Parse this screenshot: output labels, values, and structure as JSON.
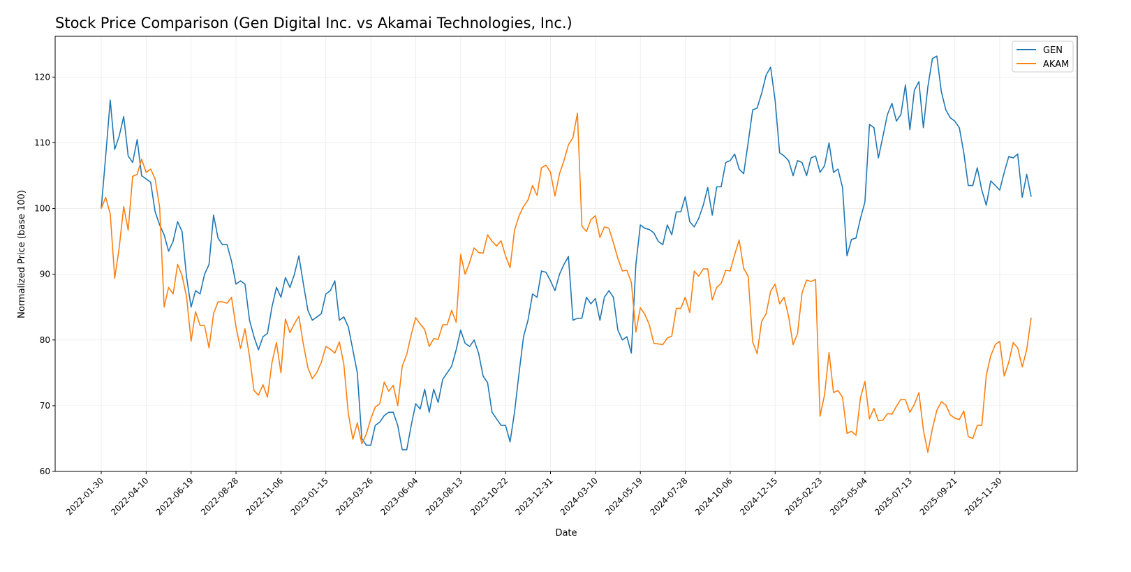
{
  "chart_data": {
    "type": "line",
    "title": "Stock Price Comparison (Gen Digital Inc. vs Akamai Technologies, Inc.)",
    "xlabel": "Date",
    "ylabel": "Normalized Price (base 100)",
    "x_start": "2022-01-30",
    "x_step_days": 7,
    "xticks": [
      "2022-01-30",
      "2022-04-10",
      "2022-06-19",
      "2022-08-28",
      "2022-11-06",
      "2023-01-15",
      "2023-03-26",
      "2023-06-04",
      "2023-08-13",
      "2023-10-22",
      "2023-12-31",
      "2024-03-10",
      "2024-05-19",
      "2024-07-28",
      "2024-10-06",
      "2024-12-15",
      "2025-02-23",
      "2025-05-04",
      "2025-07-13",
      "2025-09-21",
      "2025-11-30"
    ],
    "yticks": [
      "60",
      "70",
      "80",
      "90",
      "100",
      "110",
      "120"
    ],
    "ylim": [
      60,
      126.2
    ],
    "grid": true,
    "legend_position": "top-right",
    "series": [
      {
        "name": "GEN",
        "color": "#1f77b4",
        "values": [
          100,
          108,
          116.5,
          109,
          111,
          114,
          108,
          107,
          110.5,
          105,
          104.5,
          104,
          99.5,
          97.5,
          96,
          93.5,
          95,
          98,
          96.5,
          89.5,
          85,
          87.5,
          87,
          90,
          91.5,
          99,
          95.5,
          94.5,
          94.5,
          92,
          88.5,
          89,
          88.5,
          83,
          80.5,
          78.5,
          80.5,
          81,
          85,
          88,
          86.5,
          89.5,
          88,
          90,
          92.8,
          88.5,
          84.5,
          83,
          83.5,
          84,
          87,
          87.5,
          89,
          83,
          83.5,
          82,
          78.5,
          75,
          65,
          64,
          64,
          67,
          67.5,
          68.5,
          69,
          69,
          67,
          63.3,
          63.3,
          67,
          70.3,
          69.5,
          72.5,
          69,
          72.5,
          70.5,
          74,
          75,
          76,
          78.5,
          81.5,
          79.5,
          79,
          80,
          78,
          74.5,
          73.5,
          69,
          68,
          67,
          67,
          64.5,
          69,
          75,
          80.5,
          83,
          87,
          86.5,
          90.5,
          90.3,
          89,
          87.5,
          90,
          91.5,
          92.7,
          83,
          83.3,
          83.3,
          86.5,
          85.5,
          86.3,
          83,
          86.5,
          87.5,
          86.5,
          81.5,
          80,
          80.5,
          78,
          91.5,
          97.5,
          97,
          96.8,
          96.3,
          95,
          94.5,
          97.5,
          96,
          99.5,
          99.5,
          101.8,
          98,
          97.2,
          98.5,
          100.5,
          103.2,
          99,
          103.3,
          103.3,
          107,
          107.3,
          108.3,
          106,
          105.3,
          110,
          115,
          115.3,
          117.5,
          120.3,
          121.5,
          116.5,
          108.5,
          108,
          107.3,
          105,
          107.3,
          107,
          105,
          107.7,
          108,
          105.5,
          106.5,
          110,
          105.5,
          106,
          103.2,
          92.8,
          95.3,
          95.5,
          98.5,
          101,
          112.8,
          112.3,
          107.7,
          111,
          114.3,
          116,
          113.3,
          114.3,
          118.8,
          112,
          118,
          119.3,
          112.3,
          118.5,
          122.8,
          123.2,
          117.8,
          115,
          113.8,
          113.3,
          112.3,
          108.5,
          103.5,
          103.5,
          106.2,
          102.8,
          100.5,
          104.2,
          103.5,
          102.8,
          105.5,
          107.9,
          107.7,
          108.3,
          101.7,
          105.2,
          101.8
        ]
      },
      {
        "name": "AKAM",
        "color": "#ff7f0e",
        "values": [
          100,
          101.7,
          99.2,
          89.4,
          94,
          100.3,
          96.7,
          104.9,
          105.2,
          107.5,
          105.5,
          106,
          104.5,
          100.2,
          85,
          88,
          87,
          91.5,
          89.8,
          86.5,
          79.8,
          84.3,
          82.2,
          82.2,
          78.8,
          84,
          85.8,
          85.8,
          85.6,
          86.5,
          82,
          78.7,
          81.7,
          77.5,
          72.3,
          71.6,
          73.2,
          71.3,
          76.5,
          79.6,
          75,
          83.2,
          81.1,
          82.5,
          83.6,
          79.3,
          75.8,
          74.1,
          75.1,
          76.6,
          79,
          78.6,
          78,
          79.7,
          76.3,
          68.8,
          64.9,
          67.4,
          64.2,
          65.7,
          68,
          69.8,
          70.3,
          73.6,
          72.2,
          73.1,
          70,
          76,
          77.8,
          80.8,
          83.4,
          82.4,
          81.6,
          79,
          80.2,
          80.1,
          82.3,
          82.3,
          84.5,
          82.7,
          93,
          90,
          91.8,
          94,
          93.3,
          93.2,
          96,
          95,
          94.3,
          95.1,
          92.8,
          91,
          96.7,
          98.9,
          100.3,
          101.3,
          103.5,
          102,
          106.2,
          106.6,
          105.5,
          101.9,
          105.3,
          107.3,
          109.7,
          110.8,
          114.5,
          97.3,
          96.5,
          98.3,
          98.9,
          95.6,
          97.2,
          97,
          94.8,
          92.4,
          90.5,
          90.6,
          88.8,
          81.2,
          84.9,
          83.9,
          82.3,
          79.5,
          79.4,
          79.3,
          80.3,
          80.6,
          84.8,
          84.8,
          86.5,
          84.2,
          90.5,
          89.7,
          90.8,
          90.8,
          86.1,
          88,
          88.6,
          90.6,
          90.5,
          93,
          95.2,
          90.9,
          89.7,
          79.7,
          77.9,
          82.8,
          84,
          87.4,
          88.5,
          85.5,
          86.5,
          83.6,
          79.3,
          81,
          87.2,
          89.1,
          88.9,
          89.2,
          68.4,
          71.6,
          78.1,
          72,
          72.3,
          71.3,
          65.8,
          66.1,
          65.5,
          71.2,
          73.7,
          68,
          69.6,
          67.7,
          67.8,
          68.8,
          68.7,
          69.9,
          71,
          70.9,
          69,
          70.2,
          72,
          66.3,
          62.9,
          66.5,
          69.3,
          70.6,
          70.1,
          68.6,
          68.1,
          67.9,
          69.2,
          65.3,
          65,
          67,
          67,
          74.6,
          77.6,
          79.3,
          79.8,
          74.5,
          76.6,
          79.6,
          78.8,
          75.9,
          78.5,
          83.4
        ]
      }
    ]
  }
}
